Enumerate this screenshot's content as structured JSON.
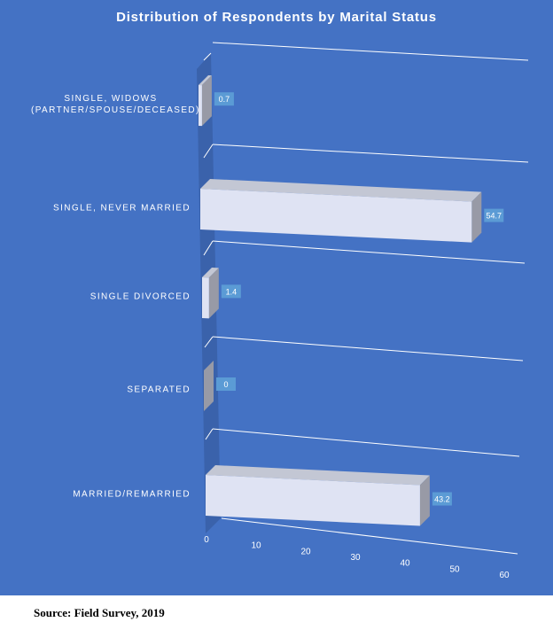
{
  "chart_data": {
    "type": "bar3d_horizontal",
    "title": "Distribution of Respondents by Marital Status",
    "categories": [
      "SINGLE, WIDOWS (PARTNER/SPOUSE/DECEASED)",
      "SINGLE, NEVER MARRIED",
      "SINGLE DIVORCED",
      "SEPARATED",
      "MARRIED/REMARRIED"
    ],
    "values": [
      0.7,
      54.7,
      1.4,
      0,
      43.2
    ],
    "color": "#dfe3f3",
    "xlim": [
      0,
      60
    ],
    "xticks": [
      0,
      10,
      20,
      30,
      40,
      50,
      60
    ]
  },
  "source": "Source: Field Survey, 2019"
}
